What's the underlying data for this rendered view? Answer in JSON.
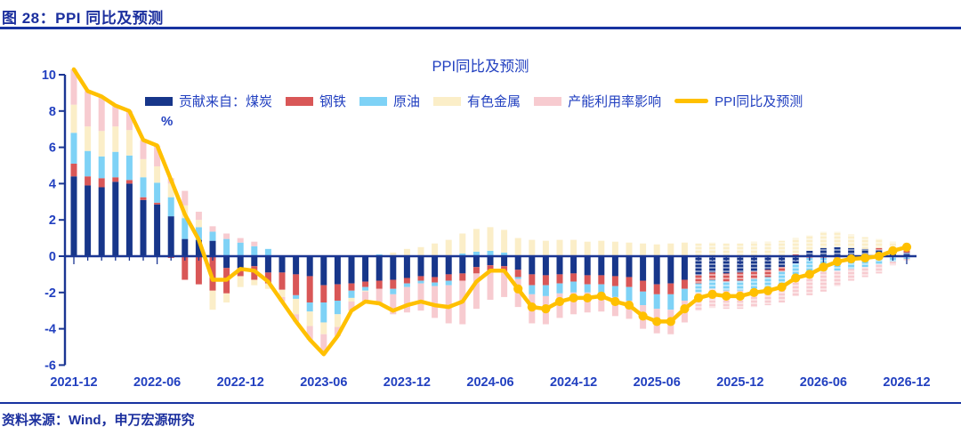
{
  "header": {
    "caption": "图 28：PPI 同比及预测"
  },
  "footer": {
    "source": "资料来源：Wind，申万宏源研究"
  },
  "chart": {
    "title": "PPI同比及预测",
    "unit": "%"
  },
  "colors": {
    "coal": "#17368A",
    "steel": "#D95757",
    "oil": "#7ED2F6",
    "nonferrous": "#FBEEC8",
    "capacity": "#F7CBD0",
    "ppi_line": "#FFC000",
    "axis": "#1B3693",
    "chart_text": "#2240C0",
    "caption_text": "#1B2F9E"
  },
  "chart_data": {
    "type": "bar",
    "subtype": "stacked-bar-with-line",
    "title": "PPI同比及预测",
    "ylabel": "%",
    "ylim": [
      -6,
      10
    ],
    "y_ticks": [
      10,
      8,
      6,
      4,
      2,
      0,
      -2,
      -4,
      -6
    ],
    "grid": false,
    "legend_position": "top",
    "x_axis_labels": [
      "2021-12",
      "2022-06",
      "2022-12",
      "2023-06",
      "2023-12",
      "2024-06",
      "2024-12",
      "2025-06",
      "2025-12",
      "2026-06",
      "2026-12"
    ],
    "marker_start": "2024-08",
    "forecast_start": "2025-09",
    "x": [
      "2021-12",
      "2022-01",
      "2022-02",
      "2022-03",
      "2022-04",
      "2022-05",
      "2022-06",
      "2022-07",
      "2022-08",
      "2022-09",
      "2022-10",
      "2022-11",
      "2022-12",
      "2023-01",
      "2023-02",
      "2023-03",
      "2023-04",
      "2023-05",
      "2023-06",
      "2023-07",
      "2023-08",
      "2023-09",
      "2023-10",
      "2023-11",
      "2023-12",
      "2024-01",
      "2024-02",
      "2024-03",
      "2024-04",
      "2024-05",
      "2024-06",
      "2024-07",
      "2024-08",
      "2024-09",
      "2024-10",
      "2024-11",
      "2024-12",
      "2025-01",
      "2025-02",
      "2025-03",
      "2025-04",
      "2025-05",
      "2025-06",
      "2025-07",
      "2025-08",
      "2025-09",
      "2025-10",
      "2025-11",
      "2025-12",
      "2026-01",
      "2026-02",
      "2026-03",
      "2026-04",
      "2026-05",
      "2026-06",
      "2026-07",
      "2026-08",
      "2026-09",
      "2026-10",
      "2026-11",
      "2026-12"
    ],
    "series": [
      {
        "name": "贡献来自：煤炭",
        "kind": "bar",
        "color": "#17368A",
        "values": [
          4.4,
          3.9,
          3.8,
          4.1,
          4.0,
          3.1,
          2.85,
          2.2,
          0.95,
          0.9,
          0.85,
          -0.65,
          -0.65,
          -0.55,
          -0.9,
          -0.9,
          -1.0,
          -1.1,
          -1.6,
          -1.55,
          -1.5,
          -1.4,
          -1.35,
          -1.3,
          -1.2,
          -1.1,
          -1.15,
          -1.0,
          -0.95,
          -0.6,
          -0.5,
          -0.55,
          -0.75,
          -1.0,
          -1.05,
          -1.0,
          -0.95,
          -1.05,
          -1.05,
          -1.1,
          -1.15,
          -1.35,
          -1.55,
          -1.5,
          -1.3,
          -1.05,
          -0.9,
          -0.95,
          -0.9,
          -0.85,
          -0.75,
          -0.6,
          -0.4,
          0.3,
          0.45,
          0.5,
          0.45,
          0.4,
          0.35,
          0.25,
          0.2
        ]
      },
      {
        "name": "钢铁",
        "kind": "bar",
        "color": "#D95757",
        "values": [
          0.7,
          0.5,
          0.5,
          0.25,
          0.2,
          0.15,
          0.1,
          -0.1,
          -1.3,
          -1.55,
          -1.9,
          -1.4,
          -0.45,
          -0.75,
          -0.6,
          -0.95,
          -1.15,
          -1.45,
          -0.95,
          -0.9,
          -0.4,
          -0.3,
          -0.45,
          -0.5,
          -0.3,
          -0.25,
          -0.3,
          -0.35,
          -0.4,
          -0.35,
          -0.3,
          -0.35,
          -0.4,
          -0.6,
          -0.55,
          -0.5,
          -0.45,
          -0.5,
          -0.5,
          -0.55,
          -0.55,
          -0.6,
          -0.55,
          -0.6,
          -0.5,
          -0.45,
          -0.4,
          -0.45,
          -0.45,
          -0.4,
          -0.4,
          -0.25,
          0.1,
          -0.1,
          -0.1,
          -0.1,
          -0.1,
          -0.05,
          0.1,
          0.15,
          0.2
        ]
      },
      {
        "name": "原油",
        "kind": "bar",
        "color": "#7ED2F6",
        "values": [
          1.7,
          1.4,
          1.2,
          1.4,
          1.35,
          1.1,
          1.1,
          1.05,
          1.15,
          0.7,
          0.5,
          0.95,
          0.75,
          0.55,
          0.4,
          0.0,
          -0.2,
          -0.5,
          -1.1,
          -0.75,
          -0.4,
          -0.2,
          0.1,
          -0.3,
          -0.2,
          -0.15,
          -0.2,
          -0.25,
          0.15,
          0.25,
          0.3,
          0.2,
          -0.1,
          -0.5,
          -0.6,
          -0.55,
          -0.6,
          -0.45,
          -0.5,
          -0.6,
          -0.75,
          -0.75,
          -0.8,
          -0.85,
          -0.65,
          -0.5,
          -0.5,
          -0.5,
          -0.55,
          -0.6,
          -0.6,
          -0.7,
          -0.65,
          -0.75,
          -0.75,
          -0.7,
          -0.6,
          -0.55,
          -0.45,
          -0.3,
          -0.15
        ]
      },
      {
        "name": "有色金属",
        "kind": "bar",
        "color": "#FBEEC8",
        "values": [
          1.55,
          1.35,
          1.4,
          1.4,
          1.4,
          1.0,
          0.9,
          0.75,
          0.7,
          0.4,
          -1.05,
          -0.5,
          -0.6,
          -0.3,
          -0.3,
          -0.4,
          -0.85,
          -0.8,
          -0.65,
          -0.7,
          -0.2,
          -0.05,
          0.0,
          0.2,
          0.4,
          0.5,
          0.7,
          0.9,
          1.1,
          1.25,
          1.3,
          1.25,
          1.0,
          0.9,
          0.85,
          0.9,
          0.9,
          0.8,
          0.85,
          0.8,
          0.75,
          0.7,
          0.65,
          0.7,
          0.75,
          0.7,
          0.75,
          0.7,
          0.7,
          0.8,
          0.8,
          0.85,
          0.9,
          0.85,
          0.9,
          0.85,
          0.75,
          0.65,
          0.5,
          0.4,
          0.35
        ]
      },
      {
        "name": "产能利用率影响",
        "kind": "bar",
        "color": "#F7CBD0",
        "values": [
          1.95,
          1.95,
          1.9,
          1.15,
          1.05,
          1.05,
          1.15,
          0.3,
          0.8,
          0.45,
          0.3,
          0.3,
          0.25,
          0.25,
          0.0,
          -0.25,
          -0.4,
          -0.75,
          -1.1,
          -0.5,
          -0.5,
          -0.55,
          -0.9,
          -1.1,
          -1.4,
          -1.5,
          -1.75,
          -2.1,
          -2.4,
          -1.95,
          -1.6,
          -1.35,
          -1.55,
          -1.6,
          -1.55,
          -1.35,
          -1.2,
          -1.1,
          -1.0,
          -1.05,
          -1.0,
          -1.3,
          -1.35,
          -1.35,
          -1.2,
          -1.0,
          -1.05,
          -1.0,
          -1.0,
          -0.95,
          -0.95,
          -1.0,
          -1.15,
          -1.3,
          -1.1,
          -0.85,
          -0.65,
          -0.55,
          -0.5,
          -0.2,
          -0.1
        ]
      },
      {
        "name": "PPI同比及预测",
        "kind": "line",
        "color": "#FFC000",
        "values": [
          10.3,
          9.1,
          8.8,
          8.3,
          8.0,
          6.4,
          6.1,
          4.2,
          2.3,
          0.9,
          -1.3,
          -1.3,
          -0.7,
          -0.8,
          -1.4,
          -2.5,
          -3.6,
          -4.6,
          -5.4,
          -4.4,
          -3.0,
          -2.5,
          -2.6,
          -3.0,
          -2.7,
          -2.5,
          -2.7,
          -2.8,
          -2.5,
          -1.4,
          -0.8,
          -0.8,
          -1.8,
          -2.8,
          -2.9,
          -2.5,
          -2.3,
          -2.3,
          -2.2,
          -2.5,
          -2.7,
          -3.3,
          -3.6,
          -3.6,
          -2.9,
          -2.3,
          -2.1,
          -2.2,
          -2.2,
          -2.0,
          -1.9,
          -1.7,
          -1.2,
          -1.0,
          -0.6,
          -0.3,
          -0.15,
          -0.1,
          0.0,
          0.3,
          0.5
        ]
      }
    ]
  }
}
